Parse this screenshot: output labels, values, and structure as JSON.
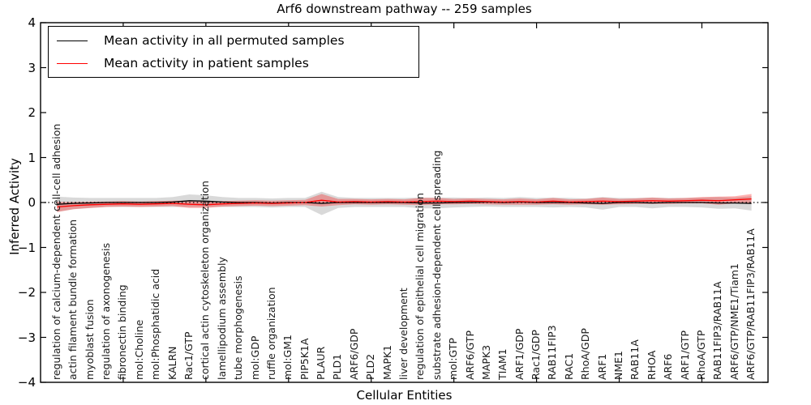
{
  "chart_data": {
    "type": "line",
    "title": "Arf6 downstream pathway -- 259 samples",
    "xlabel": "Cellular Entities",
    "ylabel": "Inferred Activity",
    "ylim": [
      -4,
      4
    ],
    "yticks": [
      -4,
      -3,
      -2,
      -1,
      0,
      1,
      2,
      3,
      4
    ],
    "grid": false,
    "legend_position": "upper left",
    "zero_line": {
      "style": "dotted",
      "color": "#000000"
    },
    "n_points": 43,
    "categories": [
      "regulation of calcium-dependent cell-cell adhesion",
      "actin filament bundle formation",
      "myoblast fusion",
      "regulation of axonogenesis",
      "fibronectin binding",
      "mol:Choline",
      "mol:Phosphatidic acid",
      "KALRN",
      "Rac1/GTP",
      "cortical actin cytoskeleton organization",
      "lamellipodium assembly",
      "tube morphogenesis",
      "mol:GDP",
      "ruffle organization",
      "mol:GM1",
      "PIP5K1A",
      "PLAUR",
      "PLD1",
      "ARF6/GDP",
      "PLD2",
      "MAPK1",
      "liver development",
      "regulation of epithelial cell migration",
      "substrate adhesion-dependent cell spreading",
      "mol:GTP",
      "ARF6/GTP",
      "MAPK3",
      "TIAM1",
      "ARF1/GDP",
      "Rac1/GDP",
      "RAB11FIP3",
      "RAC1",
      "RhoA/GDP",
      "ARF1",
      "NME1",
      "RAB11A",
      "RHOA",
      "ARF6",
      "ARF1/GTP",
      "RhoA/GTP",
      "RAB11FIP3/RAB11A",
      "ARF6/GTP/NME1/Tiam1",
      "ARF6/GTP/RAB11FIP3/RAB11A"
    ],
    "series": [
      {
        "name": "Mean activity in all permuted samples",
        "color": "#000000",
        "band_color": "#aaaaaa",
        "band_opacity": 0.45,
        "values": [
          -0.04,
          -0.02,
          -0.01,
          0,
          0,
          0,
          0,
          0.01,
          0.04,
          0.03,
          0.01,
          0,
          0,
          -0.01,
          0,
          0,
          -0.02,
          0,
          0,
          0,
          0,
          0,
          -0.01,
          -0.01,
          0,
          0,
          0.01,
          0,
          0.01,
          0,
          0,
          0,
          -0.01,
          -0.02,
          0,
          0,
          -0.01,
          0,
          0,
          0,
          -0.01,
          -0.01,
          -0.02
        ],
        "band_halfwidth": [
          0.17,
          0.13,
          0.11,
          0.1,
          0.1,
          0.1,
          0.1,
          0.11,
          0.14,
          0.13,
          0.11,
          0.1,
          0.1,
          0.1,
          0.1,
          0.1,
          0.26,
          0.12,
          0.1,
          0.1,
          0.1,
          0.1,
          0.12,
          0.12,
          0.11,
          0.1,
          0.1,
          0.1,
          0.11,
          0.1,
          0.11,
          0.1,
          0.1,
          0.14,
          0.1,
          0.1,
          0.12,
          0.1,
          0.1,
          0.11,
          0.13,
          0.12,
          0.16
        ]
      },
      {
        "name": "Mean activity in patient samples",
        "color": "#ff0000",
        "band_color": "#ff0000",
        "band_opacity": 0.3,
        "values": [
          -0.1,
          -0.07,
          -0.05,
          -0.04,
          -0.03,
          -0.04,
          -0.03,
          -0.02,
          -0.04,
          -0.05,
          -0.03,
          -0.02,
          -0.01,
          -0.02,
          -0.01,
          0.0,
          0.05,
          0.01,
          0.02,
          0.01,
          0.02,
          0.01,
          0.02,
          0.03,
          0.02,
          0.03,
          0.02,
          0.01,
          0.02,
          0.01,
          0.03,
          0.01,
          0.02,
          0.03,
          0.02,
          0.03,
          0.04,
          0.03,
          0.04,
          0.05,
          0.04,
          0.06,
          0.08
        ],
        "band_halfwidth": [
          0.11,
          0.08,
          0.07,
          0.06,
          0.06,
          0.06,
          0.06,
          0.06,
          0.08,
          0.07,
          0.06,
          0.06,
          0.06,
          0.06,
          0.06,
          0.06,
          0.14,
          0.07,
          0.06,
          0.06,
          0.06,
          0.06,
          0.08,
          0.07,
          0.06,
          0.06,
          0.06,
          0.06,
          0.07,
          0.06,
          0.07,
          0.06,
          0.06,
          0.08,
          0.06,
          0.06,
          0.07,
          0.06,
          0.06,
          0.07,
          0.09,
          0.08,
          0.11
        ]
      }
    ]
  }
}
